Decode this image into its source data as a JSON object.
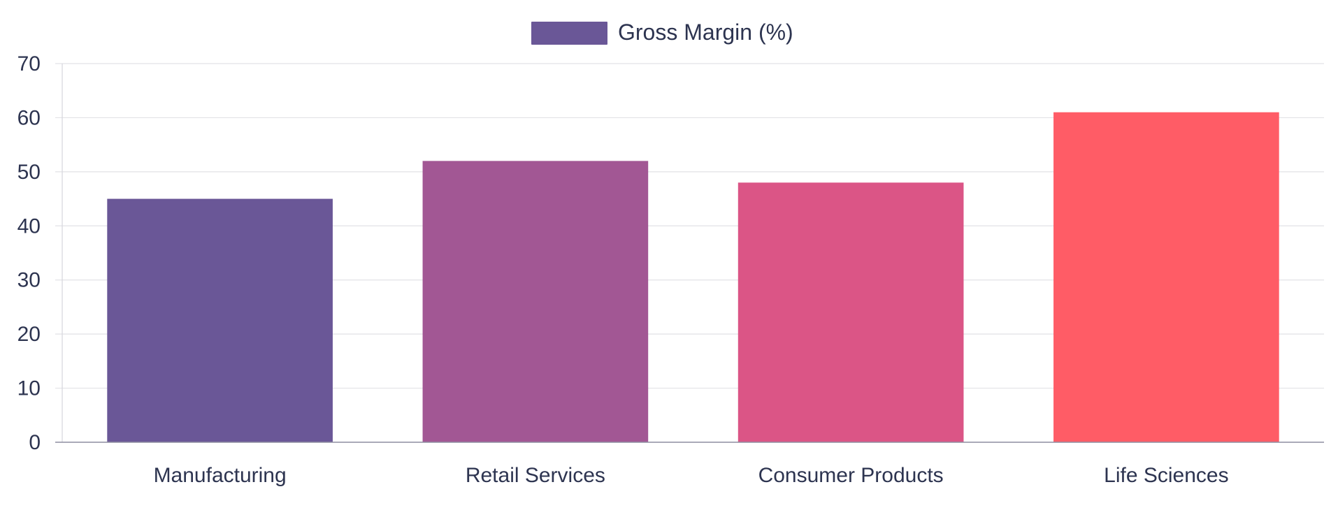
{
  "chart_data": {
    "type": "bar",
    "categories": [
      "Manufacturing",
      "Retail Services",
      "Consumer Products",
      "Life Sciences"
    ],
    "series": [
      {
        "name": "Gross Margin (%)",
        "values": [
          45,
          52,
          48,
          61
        ],
        "colors": [
          "#6a5797",
          "#a25794",
          "#db5586",
          "#ff5c66"
        ]
      }
    ],
    "ylim": [
      0,
      70
    ],
    "yticks": [
      0,
      10,
      20,
      30,
      40,
      50,
      60,
      70
    ],
    "grid": true,
    "legend_position": "top-center",
    "legend_color": "#6a5797",
    "title": "",
    "xlabel": "",
    "ylabel": ""
  }
}
